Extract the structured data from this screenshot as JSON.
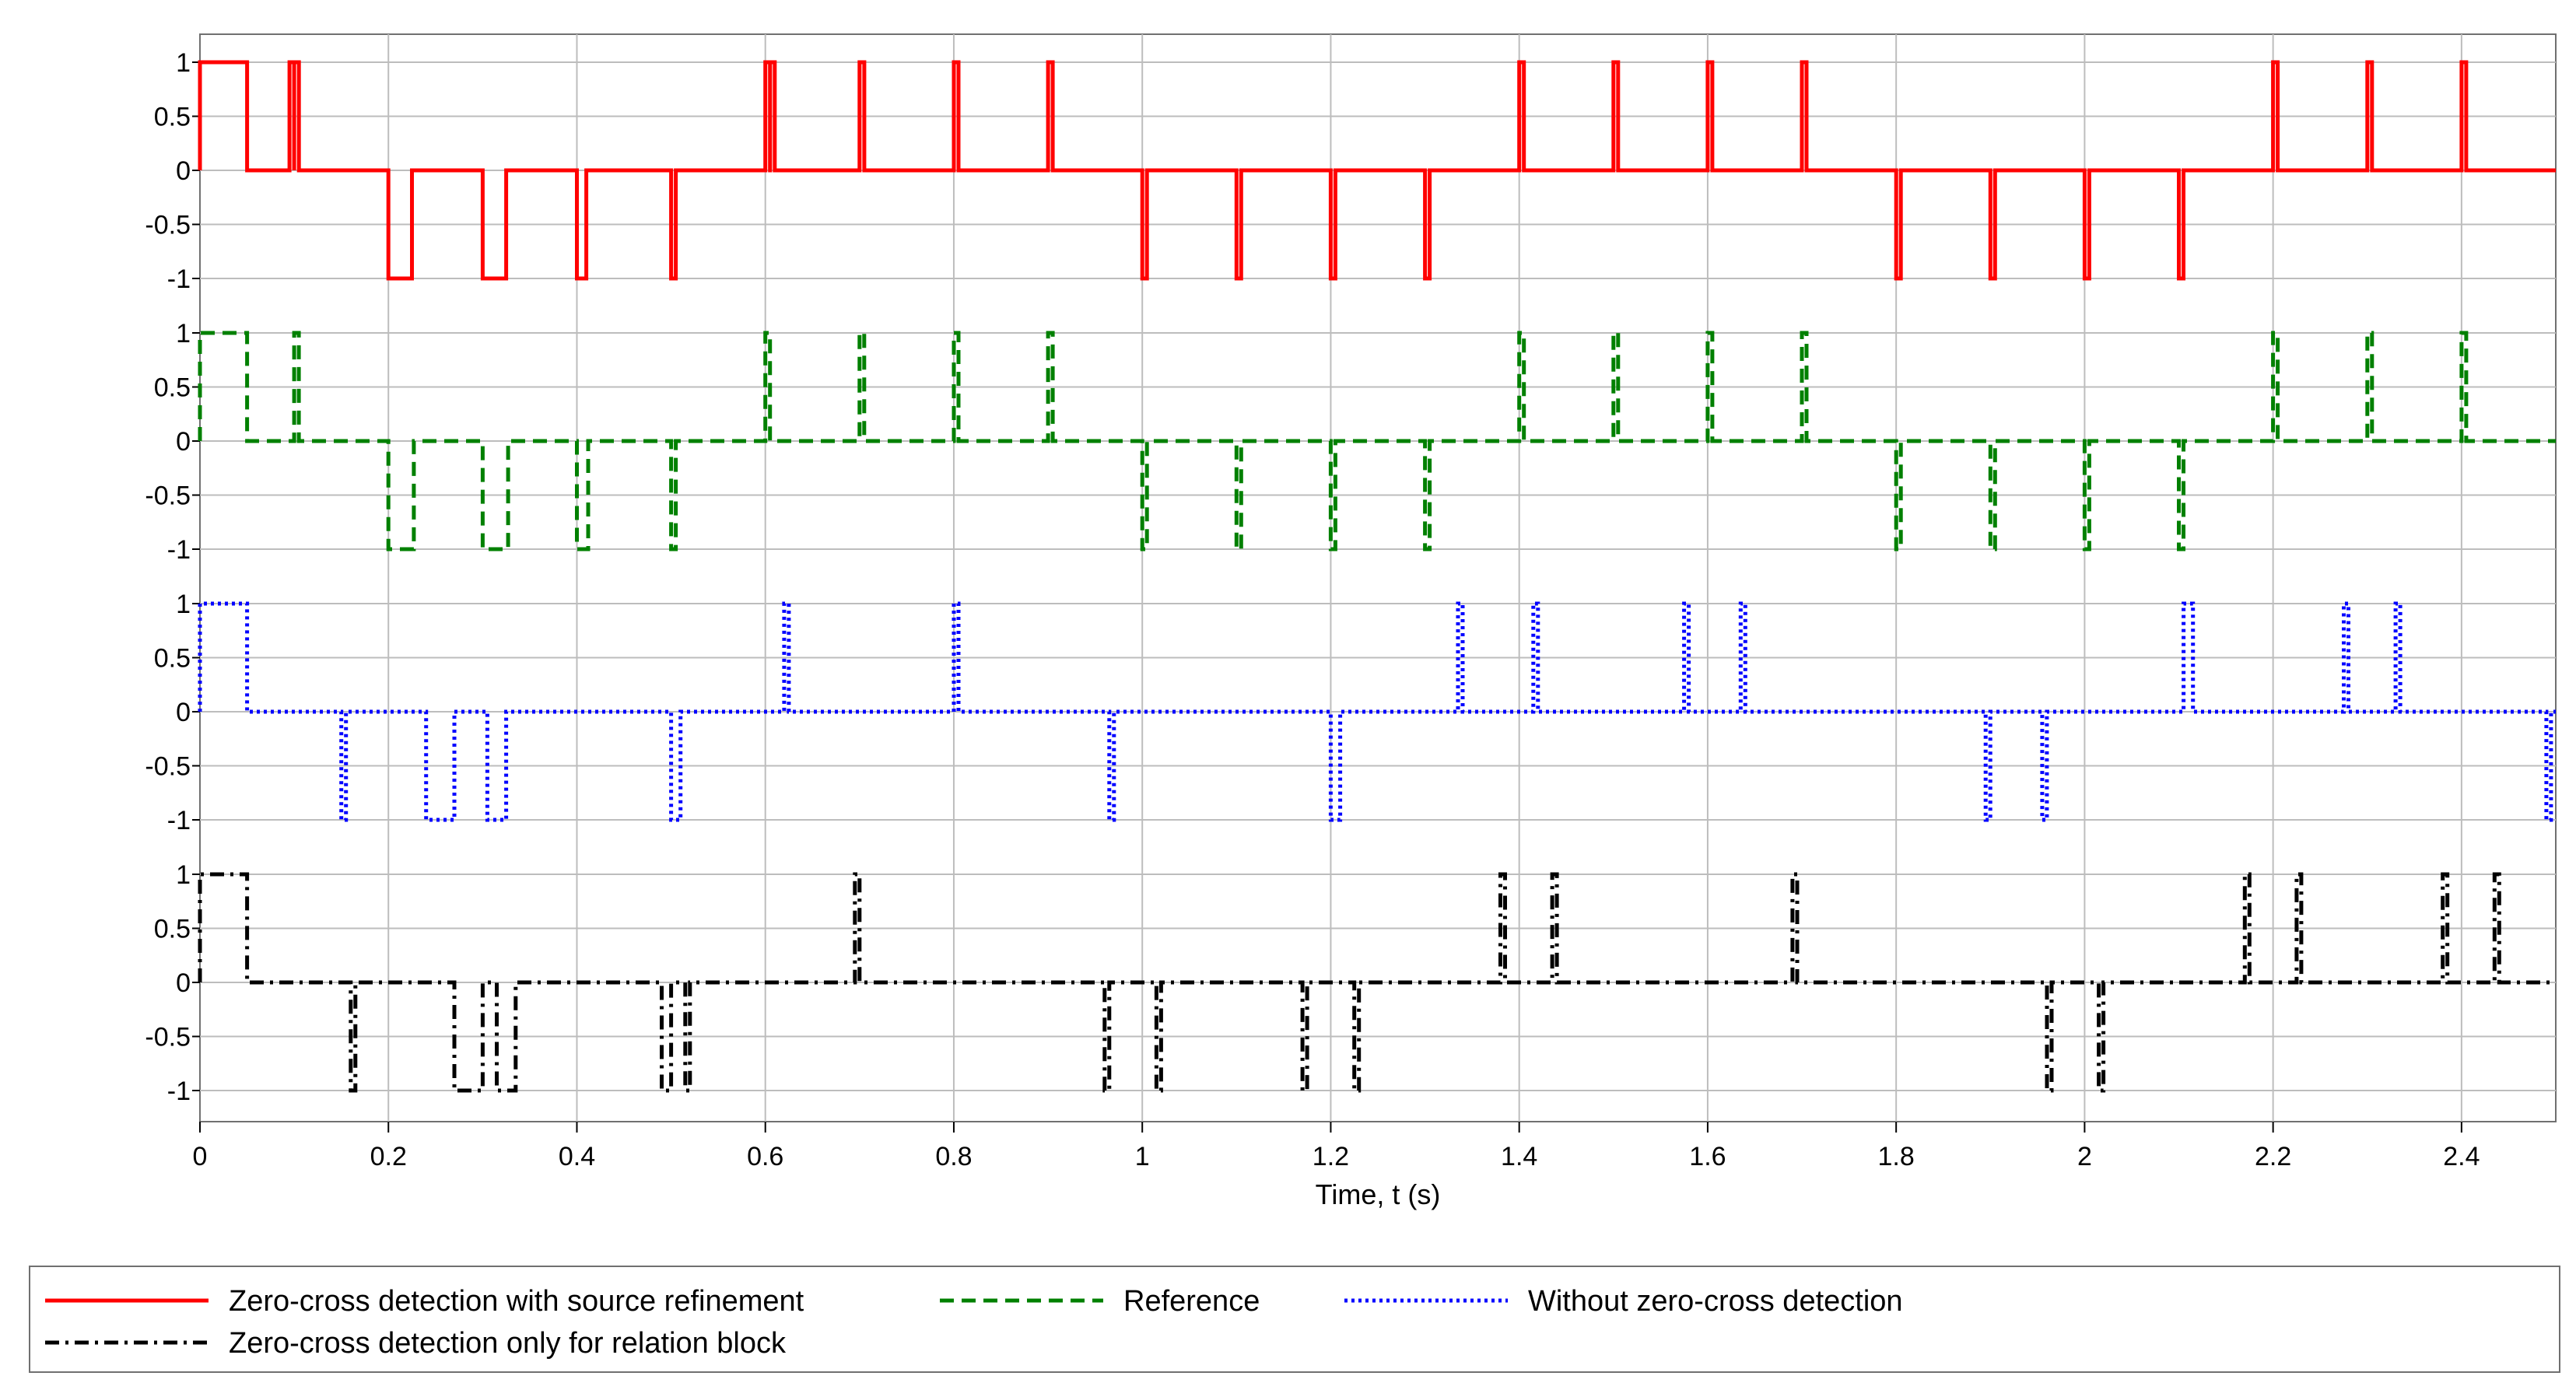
{
  "chart_data": {
    "type": "line",
    "title": "",
    "xlabel": "Time, t (s)",
    "xlim": [
      0,
      2.5
    ],
    "x_ticks": [
      0,
      0.2,
      0.4,
      0.6,
      0.8,
      1,
      1.2,
      1.4,
      1.6,
      1.8,
      2,
      2.2,
      2.4
    ],
    "x_tick_labels": [
      "0",
      "0.2",
      "0.4",
      "0.6",
      "0.8",
      "1",
      "1.2",
      "1.4",
      "1.6",
      "1.8",
      "2",
      "2.2",
      "2.4"
    ],
    "y_ticks": [
      1,
      0.5,
      0,
      -0.5,
      -1
    ],
    "y_tick_labels": [
      "1",
      "0.5",
      "0",
      "-0.5",
      "-1"
    ],
    "ylim_per_panel": [
      -1,
      1
    ],
    "grid": true,
    "legend_position": "bottom",
    "series": [
      {
        "name": "Zero-cross detection with source refinement",
        "color": "#ff0000",
        "dash": "solid",
        "panel": 0,
        "segments": [
          [
            0,
            0.05,
            1
          ],
          [
            0.095,
            0.1,
            1
          ],
          [
            0.1,
            0.105,
            1
          ],
          [
            0.2,
            0.225,
            -1
          ],
          [
            0.3,
            0.325,
            -1
          ],
          [
            0.4,
            0.41,
            -1
          ],
          [
            0.5,
            0.5,
            -1
          ],
          [
            0.6,
            0.6,
            1
          ],
          [
            0.605,
            0.605,
            1
          ],
          [
            0.7,
            0.705,
            1
          ],
          [
            0.8,
            0.8,
            1
          ],
          [
            0.9,
            0.9,
            1
          ],
          [
            1.0,
            1.0,
            -1
          ],
          [
            1.1,
            1.1,
            -1
          ],
          [
            1.2,
            1.2,
            -1
          ],
          [
            1.3,
            1.3,
            -1
          ],
          [
            1.4,
            1.4,
            1
          ],
          [
            1.5,
            1.5,
            1
          ],
          [
            1.6,
            1.6,
            1
          ],
          [
            1.7,
            1.7,
            1
          ],
          [
            1.8,
            1.8,
            -1
          ],
          [
            1.9,
            1.9,
            -1
          ],
          [
            2.0,
            2.0,
            -1
          ],
          [
            2.1,
            2.1,
            -1
          ],
          [
            2.2,
            2.2,
            1
          ],
          [
            2.3,
            2.3,
            1
          ],
          [
            2.4,
            2.4,
            1
          ]
        ]
      },
      {
        "name": "Reference",
        "color": "#008000",
        "dash": "dashed",
        "panel": 1,
        "segments": [
          [
            0,
            0.05,
            1
          ],
          [
            0.1,
            0.1,
            1
          ],
          [
            0.2,
            0.227,
            -1
          ],
          [
            0.3,
            0.327,
            -1
          ],
          [
            0.4,
            0.412,
            -1
          ],
          [
            0.5,
            0.5,
            -1
          ],
          [
            0.6,
            0.6,
            1
          ],
          [
            0.7,
            0.7,
            1
          ],
          [
            0.8,
            0.8,
            1
          ],
          [
            0.9,
            0.9,
            1
          ],
          [
            1.0,
            1.0,
            -1
          ],
          [
            1.1,
            1.1,
            -1
          ],
          [
            1.2,
            1.2,
            -1
          ],
          [
            1.3,
            1.3,
            -1
          ],
          [
            1.4,
            1.4,
            1
          ],
          [
            1.5,
            1.5,
            1
          ],
          [
            1.6,
            1.6,
            1
          ],
          [
            1.7,
            1.7,
            1
          ],
          [
            1.8,
            1.8,
            -1
          ],
          [
            1.9,
            1.9,
            -1
          ],
          [
            2.0,
            2.0,
            -1
          ],
          [
            2.1,
            2.1,
            -1
          ],
          [
            2.2,
            2.2,
            1
          ],
          [
            2.3,
            2.3,
            1
          ],
          [
            2.4,
            2.4,
            1
          ]
        ]
      },
      {
        "name": "Without zero-cross detection",
        "color": "#0000ff",
        "dash": "dotted",
        "panel": 2,
        "segments": [
          [
            0,
            0.05,
            1
          ],
          [
            0.15,
            0.15,
            -1
          ],
          [
            0.24,
            0.27,
            -1
          ],
          [
            0.305,
            0.325,
            -1
          ],
          [
            0.5,
            0.51,
            -1
          ],
          [
            0.62,
            0.62,
            1
          ],
          [
            0.8,
            0.805,
            1
          ],
          [
            0.965,
            0.965,
            -1
          ],
          [
            1.2,
            1.21,
            -1
          ],
          [
            1.335,
            1.335,
            1
          ],
          [
            1.415,
            1.415,
            1
          ],
          [
            1.575,
            1.575,
            1
          ],
          [
            1.635,
            1.635,
            1
          ],
          [
            1.895,
            1.895,
            -1
          ],
          [
            1.955,
            1.955,
            -1
          ],
          [
            2.105,
            2.115,
            1
          ],
          [
            2.275,
            2.275,
            1
          ],
          [
            2.33,
            2.33,
            1
          ],
          [
            2.49,
            2.49,
            -1
          ]
        ]
      },
      {
        "name": "Zero-cross detection only for relation block",
        "color": "#000000",
        "dash": "dashdot",
        "panel": 3,
        "segments": [
          [
            0,
            0.05,
            1
          ],
          [
            0.16,
            0.16,
            -1
          ],
          [
            0.27,
            0.3,
            -1
          ],
          [
            0.315,
            0.335,
            -1
          ],
          [
            0.49,
            0.5,
            -1
          ],
          [
            0.515,
            0.515,
            -1
          ],
          [
            0.695,
            0.7,
            1
          ],
          [
            0.96,
            0.96,
            -1
          ],
          [
            1.015,
            1.015,
            -1
          ],
          [
            1.17,
            1.17,
            -1
          ],
          [
            1.225,
            1.225,
            -1
          ],
          [
            1.38,
            1.38,
            1
          ],
          [
            1.435,
            1.435,
            1
          ],
          [
            1.69,
            1.695,
            1
          ],
          [
            1.96,
            1.96,
            -1
          ],
          [
            2.015,
            2.015,
            -1
          ],
          [
            2.17,
            2.17,
            1
          ],
          [
            2.225,
            2.225,
            1
          ],
          [
            2.38,
            2.38,
            1
          ],
          [
            2.435,
            2.435,
            1
          ]
        ]
      }
    ]
  }
}
